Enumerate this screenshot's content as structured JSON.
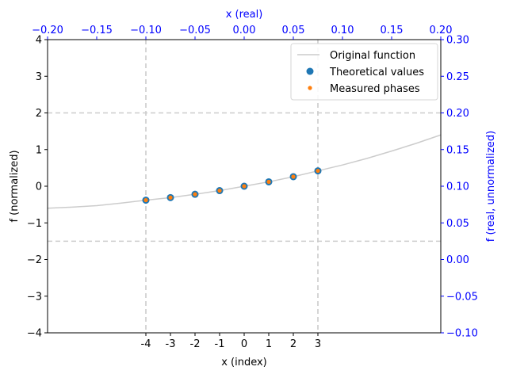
{
  "chart_data": {
    "type": "scatter",
    "bottom_axis": {
      "label": "x (index)",
      "range": [
        -8,
        8
      ],
      "ticks": [
        -4,
        -3,
        -2,
        -1,
        0,
        1,
        2,
        3
      ],
      "tick_labels": [
        "-4",
        "-3",
        "-2",
        "-1",
        "0",
        "1",
        "2",
        "3"
      ]
    },
    "left_axis": {
      "label": "f (normalized)",
      "range": [
        -4,
        4
      ],
      "ticks": [
        -4,
        -3,
        -2,
        -1,
        0,
        1,
        2,
        3,
        4
      ],
      "tick_labels": [
        "−4",
        "−3",
        "−2",
        "−1",
        "0",
        "1",
        "2",
        "3",
        "4"
      ]
    },
    "top_axis": {
      "label": "x (real)",
      "range": [
        -0.2,
        0.2
      ],
      "ticks": [
        -0.2,
        -0.15,
        -0.1,
        -0.05,
        0,
        0.05,
        0.1,
        0.15,
        0.2
      ],
      "tick_labels": [
        "−0.20",
        "−0.15",
        "−0.10",
        "−0.05",
        "0.00",
        "0.05",
        "0.10",
        "0.15",
        "0.20"
      ],
      "color": "#0000ff"
    },
    "right_axis": {
      "label": "f (real, unnormalized)",
      "range": [
        -0.1,
        0.3
      ],
      "ticks": [
        -0.1,
        -0.05,
        0,
        0.05,
        0.1,
        0.15,
        0.2,
        0.25,
        0.3
      ],
      "tick_labels": [
        "−0.10",
        "−0.05",
        "0.00",
        "0.05",
        "0.10",
        "0.15",
        "0.20",
        "0.25",
        "0.30"
      ],
      "color": "#0000ff"
    },
    "reference_lines": {
      "vertical_x_index": [
        -4,
        3
      ],
      "horizontal_f_normalized": [
        2,
        -1.5
      ],
      "color": "#cccccc",
      "style": "dashed"
    },
    "series": [
      {
        "name": "Original function",
        "kind": "line",
        "color": "#cccccc",
        "x": [
          -8,
          -7,
          -6,
          -5,
          -4,
          -3,
          -2,
          -1,
          0,
          1,
          2,
          3,
          4,
          5,
          6,
          7,
          8
        ],
        "y": [
          -0.6,
          -0.57,
          -0.53,
          -0.46,
          -0.38,
          -0.31,
          -0.22,
          -0.12,
          0.0,
          0.12,
          0.26,
          0.42,
          0.58,
          0.76,
          0.96,
          1.17,
          1.4
        ]
      },
      {
        "name": "Theoretical values",
        "kind": "scatter",
        "color": "#1f77b4",
        "x": [
          -4,
          -3,
          -2,
          -1,
          0,
          1,
          2,
          3
        ],
        "y": [
          -0.38,
          -0.31,
          -0.22,
          -0.12,
          0.0,
          0.12,
          0.26,
          0.42
        ]
      },
      {
        "name": "Measured phases",
        "kind": "scatter",
        "color": "#ff7f0e",
        "x": [
          -4,
          -3,
          -2,
          -1,
          0,
          1,
          2,
          3
        ],
        "y": [
          -0.38,
          -0.31,
          -0.22,
          -0.12,
          0.0,
          0.12,
          0.26,
          0.42
        ]
      }
    ],
    "legend": {
      "placement": "top-right",
      "entries": [
        "Original function",
        "Theoretical values",
        "Measured phases"
      ]
    },
    "grid": false
  }
}
